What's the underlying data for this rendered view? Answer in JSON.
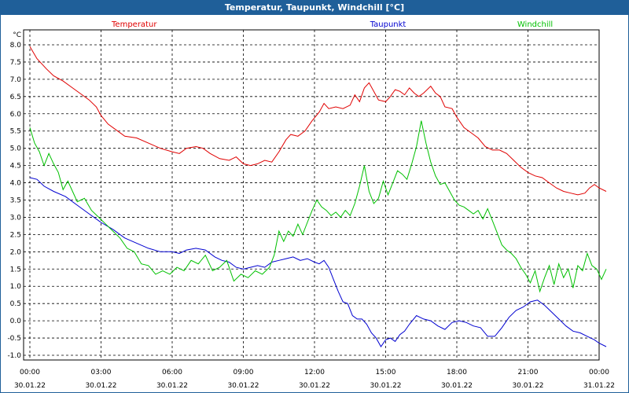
{
  "window": {
    "title": "Temperatur, Taupunkt, Windchill [°C]"
  },
  "chart_data": {
    "type": "line",
    "title": "Temperatur, Taupunkt, Windchill [°C]",
    "ylabel": "°C",
    "xlabel": "",
    "ylim": [
      -1.0,
      8.0
    ],
    "yticks": [
      8.0,
      7.5,
      7.0,
      6.5,
      6.0,
      5.5,
      5.0,
      4.5,
      4.0,
      3.5,
      3.0,
      2.5,
      2.0,
      1.5,
      1.0,
      0.5,
      0.0,
      -0.5,
      -1.0
    ],
    "ytick_labels": [
      "8.0",
      "7.5",
      "7.0",
      "6.5",
      "6.0",
      "5.5",
      "5.0",
      "4.5",
      "4.0",
      "3.5",
      "3.0",
      "2.5",
      "2.0",
      "1.5",
      "1.0",
      "0.5",
      "0.0",
      "-0.5",
      "-1.0"
    ],
    "xlim": [
      0,
      24
    ],
    "xticks": [
      {
        "x": 0,
        "time": "00:00",
        "date": "30.01.22"
      },
      {
        "x": 3,
        "time": "03:00",
        "date": "30.01.22"
      },
      {
        "x": 6,
        "time": "06:00",
        "date": "30.01.22"
      },
      {
        "x": 9,
        "time": "09:00",
        "date": "30.01.22"
      },
      {
        "x": 12,
        "time": "12:00",
        "date": "30.01.22"
      },
      {
        "x": 15,
        "time": "15:00",
        "date": "30.01.22"
      },
      {
        "x": 18,
        "time": "18:00",
        "date": "30.01.22"
      },
      {
        "x": 21,
        "time": "21:00",
        "date": "30.01.22"
      },
      {
        "x": 24,
        "time": "00:00",
        "date": "31.01.22"
      }
    ],
    "grid": true,
    "legend_position": "top",
    "series": [
      {
        "name": "Temperatur",
        "color": "#e00000",
        "points": [
          [
            0.0,
            7.95
          ],
          [
            0.3,
            7.6
          ],
          [
            0.7,
            7.3
          ],
          [
            1.0,
            7.1
          ],
          [
            1.4,
            6.95
          ],
          [
            1.8,
            6.75
          ],
          [
            2.2,
            6.55
          ],
          [
            2.5,
            6.4
          ],
          [
            2.8,
            6.2
          ],
          [
            3.0,
            5.95
          ],
          [
            3.3,
            5.7
          ],
          [
            3.7,
            5.5
          ],
          [
            4.0,
            5.35
          ],
          [
            4.5,
            5.3
          ],
          [
            5.0,
            5.15
          ],
          [
            5.5,
            5.0
          ],
          [
            6.0,
            4.9
          ],
          [
            6.3,
            4.85
          ],
          [
            6.6,
            5.0
          ],
          [
            7.0,
            5.05
          ],
          [
            7.3,
            5.0
          ],
          [
            7.6,
            4.85
          ],
          [
            8.0,
            4.7
          ],
          [
            8.4,
            4.65
          ],
          [
            8.7,
            4.75
          ],
          [
            9.0,
            4.55
          ],
          [
            9.3,
            4.5
          ],
          [
            9.6,
            4.55
          ],
          [
            9.9,
            4.65
          ],
          [
            10.2,
            4.6
          ],
          [
            10.5,
            4.9
          ],
          [
            10.8,
            5.25
          ],
          [
            11.0,
            5.4
          ],
          [
            11.3,
            5.35
          ],
          [
            11.6,
            5.5
          ],
          [
            11.9,
            5.8
          ],
          [
            12.2,
            6.05
          ],
          [
            12.4,
            6.3
          ],
          [
            12.6,
            6.15
          ],
          [
            12.9,
            6.2
          ],
          [
            13.2,
            6.15
          ],
          [
            13.5,
            6.25
          ],
          [
            13.7,
            6.55
          ],
          [
            13.9,
            6.35
          ],
          [
            14.1,
            6.75
          ],
          [
            14.3,
            6.9
          ],
          [
            14.5,
            6.65
          ],
          [
            14.7,
            6.4
          ],
          [
            15.0,
            6.35
          ],
          [
            15.2,
            6.5
          ],
          [
            15.4,
            6.7
          ],
          [
            15.6,
            6.65
          ],
          [
            15.8,
            6.55
          ],
          [
            16.0,
            6.75
          ],
          [
            16.2,
            6.6
          ],
          [
            16.4,
            6.5
          ],
          [
            16.6,
            6.6
          ],
          [
            16.9,
            6.8
          ],
          [
            17.1,
            6.6
          ],
          [
            17.3,
            6.5
          ],
          [
            17.5,
            6.2
          ],
          [
            17.8,
            6.15
          ],
          [
            18.0,
            5.9
          ],
          [
            18.3,
            5.6
          ],
          [
            18.6,
            5.45
          ],
          [
            18.9,
            5.3
          ],
          [
            19.2,
            5.05
          ],
          [
            19.5,
            4.95
          ],
          [
            19.8,
            4.95
          ],
          [
            20.1,
            4.85
          ],
          [
            20.4,
            4.65
          ],
          [
            20.7,
            4.45
          ],
          [
            21.0,
            4.3
          ],
          [
            21.3,
            4.2
          ],
          [
            21.6,
            4.15
          ],
          [
            21.9,
            4.0
          ],
          [
            22.2,
            3.85
          ],
          [
            22.5,
            3.75
          ],
          [
            22.8,
            3.7
          ],
          [
            23.1,
            3.65
          ],
          [
            23.4,
            3.7
          ],
          [
            23.6,
            3.85
          ],
          [
            23.8,
            3.95
          ],
          [
            24.0,
            3.85
          ],
          [
            24.3,
            3.75
          ]
        ]
      },
      {
        "name": "Taupunkt",
        "color": "#0000d0",
        "points": [
          [
            0.0,
            4.15
          ],
          [
            0.3,
            4.1
          ],
          [
            0.6,
            3.9
          ],
          [
            1.0,
            3.75
          ],
          [
            1.5,
            3.6
          ],
          [
            2.0,
            3.35
          ],
          [
            2.5,
            3.1
          ],
          [
            3.0,
            2.85
          ],
          [
            3.5,
            2.65
          ],
          [
            4.0,
            2.4
          ],
          [
            4.5,
            2.25
          ],
          [
            5.0,
            2.1
          ],
          [
            5.5,
            2.0
          ],
          [
            6.0,
            2.0
          ],
          [
            6.3,
            1.95
          ],
          [
            6.6,
            2.05
          ],
          [
            7.0,
            2.1
          ],
          [
            7.4,
            2.05
          ],
          [
            7.8,
            1.85
          ],
          [
            8.1,
            1.75
          ],
          [
            8.4,
            1.7
          ],
          [
            8.7,
            1.55
          ],
          [
            9.0,
            1.5
          ],
          [
            9.3,
            1.55
          ],
          [
            9.6,
            1.6
          ],
          [
            9.9,
            1.55
          ],
          [
            10.2,
            1.7
          ],
          [
            10.5,
            1.75
          ],
          [
            10.8,
            1.8
          ],
          [
            11.1,
            1.85
          ],
          [
            11.4,
            1.75
          ],
          [
            11.7,
            1.8
          ],
          [
            12.0,
            1.7
          ],
          [
            12.2,
            1.65
          ],
          [
            12.4,
            1.75
          ],
          [
            12.6,
            1.55
          ],
          [
            12.8,
            1.2
          ],
          [
            13.0,
            0.85
          ],
          [
            13.2,
            0.55
          ],
          [
            13.4,
            0.5
          ],
          [
            13.6,
            0.15
          ],
          [
            13.8,
            0.05
          ],
          [
            14.0,
            0.05
          ],
          [
            14.2,
            -0.1
          ],
          [
            14.4,
            -0.35
          ],
          [
            14.6,
            -0.5
          ],
          [
            14.8,
            -0.75
          ],
          [
            15.0,
            -0.55
          ],
          [
            15.2,
            -0.5
          ],
          [
            15.4,
            -0.6
          ],
          [
            15.6,
            -0.4
          ],
          [
            15.8,
            -0.3
          ],
          [
            16.0,
            -0.1
          ],
          [
            16.3,
            0.15
          ],
          [
            16.6,
            0.05
          ],
          [
            16.9,
            0.0
          ],
          [
            17.2,
            -0.15
          ],
          [
            17.5,
            -0.25
          ],
          [
            17.8,
            -0.05
          ],
          [
            18.1,
            0.0
          ],
          [
            18.4,
            -0.05
          ],
          [
            18.7,
            -0.15
          ],
          [
            19.0,
            -0.2
          ],
          [
            19.3,
            -0.45
          ],
          [
            19.6,
            -0.45
          ],
          [
            19.9,
            -0.2
          ],
          [
            20.2,
            0.1
          ],
          [
            20.5,
            0.3
          ],
          [
            20.8,
            0.4
          ],
          [
            21.1,
            0.55
          ],
          [
            21.4,
            0.6
          ],
          [
            21.7,
            0.45
          ],
          [
            22.0,
            0.25
          ],
          [
            22.3,
            0.05
          ],
          [
            22.6,
            -0.15
          ],
          [
            22.9,
            -0.3
          ],
          [
            23.2,
            -0.35
          ],
          [
            23.5,
            -0.45
          ],
          [
            23.8,
            -0.55
          ],
          [
            24.0,
            -0.65
          ],
          [
            24.3,
            -0.75
          ]
        ]
      },
      {
        "name": "Windchill",
        "color": "#00c000",
        "points": [
          [
            0.0,
            5.6
          ],
          [
            0.2,
            5.15
          ],
          [
            0.4,
            4.9
          ],
          [
            0.6,
            4.5
          ],
          [
            0.8,
            4.85
          ],
          [
            1.0,
            4.55
          ],
          [
            1.2,
            4.3
          ],
          [
            1.4,
            3.8
          ],
          [
            1.6,
            4.05
          ],
          [
            1.8,
            3.75
          ],
          [
            2.0,
            3.45
          ],
          [
            2.3,
            3.55
          ],
          [
            2.6,
            3.2
          ],
          [
            2.9,
            3.0
          ],
          [
            3.2,
            2.8
          ],
          [
            3.5,
            2.6
          ],
          [
            3.8,
            2.4
          ],
          [
            4.1,
            2.1
          ],
          [
            4.4,
            2.0
          ],
          [
            4.7,
            1.65
          ],
          [
            5.0,
            1.6
          ],
          [
            5.3,
            1.35
          ],
          [
            5.6,
            1.45
          ],
          [
            5.9,
            1.35
          ],
          [
            6.2,
            1.55
          ],
          [
            6.5,
            1.45
          ],
          [
            6.8,
            1.75
          ],
          [
            7.1,
            1.65
          ],
          [
            7.4,
            1.9
          ],
          [
            7.7,
            1.45
          ],
          [
            8.0,
            1.55
          ],
          [
            8.3,
            1.75
          ],
          [
            8.6,
            1.15
          ],
          [
            8.9,
            1.35
          ],
          [
            9.2,
            1.25
          ],
          [
            9.5,
            1.45
          ],
          [
            9.8,
            1.35
          ],
          [
            10.1,
            1.55
          ],
          [
            10.3,
            1.9
          ],
          [
            10.5,
            2.6
          ],
          [
            10.7,
            2.3
          ],
          [
            10.9,
            2.6
          ],
          [
            11.1,
            2.45
          ],
          [
            11.3,
            2.8
          ],
          [
            11.5,
            2.5
          ],
          [
            11.7,
            2.85
          ],
          [
            11.9,
            3.2
          ],
          [
            12.1,
            3.5
          ],
          [
            12.3,
            3.3
          ],
          [
            12.5,
            3.2
          ],
          [
            12.7,
            3.05
          ],
          [
            12.9,
            3.15
          ],
          [
            13.1,
            3.0
          ],
          [
            13.3,
            3.2
          ],
          [
            13.5,
            3.05
          ],
          [
            13.7,
            3.4
          ],
          [
            13.9,
            3.9
          ],
          [
            14.1,
            4.5
          ],
          [
            14.3,
            3.75
          ],
          [
            14.5,
            3.4
          ],
          [
            14.7,
            3.55
          ],
          [
            14.9,
            4.05
          ],
          [
            15.1,
            3.65
          ],
          [
            15.3,
            4.0
          ],
          [
            15.5,
            4.35
          ],
          [
            15.7,
            4.25
          ],
          [
            15.9,
            4.1
          ],
          [
            16.1,
            4.55
          ],
          [
            16.3,
            5.05
          ],
          [
            16.5,
            5.8
          ],
          [
            16.7,
            5.15
          ],
          [
            16.9,
            4.6
          ],
          [
            17.1,
            4.2
          ],
          [
            17.3,
            3.95
          ],
          [
            17.5,
            4.0
          ],
          [
            17.7,
            3.75
          ],
          [
            17.9,
            3.5
          ],
          [
            18.1,
            3.35
          ],
          [
            18.3,
            3.3
          ],
          [
            18.5,
            3.2
          ],
          [
            18.7,
            3.1
          ],
          [
            18.9,
            3.2
          ],
          [
            19.1,
            2.95
          ],
          [
            19.3,
            3.25
          ],
          [
            19.5,
            2.9
          ],
          [
            19.7,
            2.55
          ],
          [
            19.9,
            2.2
          ],
          [
            20.1,
            2.05
          ],
          [
            20.3,
            1.95
          ],
          [
            20.5,
            1.8
          ],
          [
            20.7,
            1.55
          ],
          [
            20.9,
            1.35
          ],
          [
            21.1,
            1.1
          ],
          [
            21.3,
            1.45
          ],
          [
            21.5,
            0.85
          ],
          [
            21.7,
            1.25
          ],
          [
            21.9,
            1.6
          ],
          [
            22.1,
            1.05
          ],
          [
            22.3,
            1.65
          ],
          [
            22.5,
            1.25
          ],
          [
            22.7,
            1.5
          ],
          [
            22.9,
            0.95
          ],
          [
            23.1,
            1.6
          ],
          [
            23.3,
            1.45
          ],
          [
            23.5,
            1.95
          ],
          [
            23.7,
            1.6
          ],
          [
            23.9,
            1.5
          ],
          [
            24.1,
            1.2
          ],
          [
            24.3,
            1.5
          ]
        ]
      }
    ]
  }
}
